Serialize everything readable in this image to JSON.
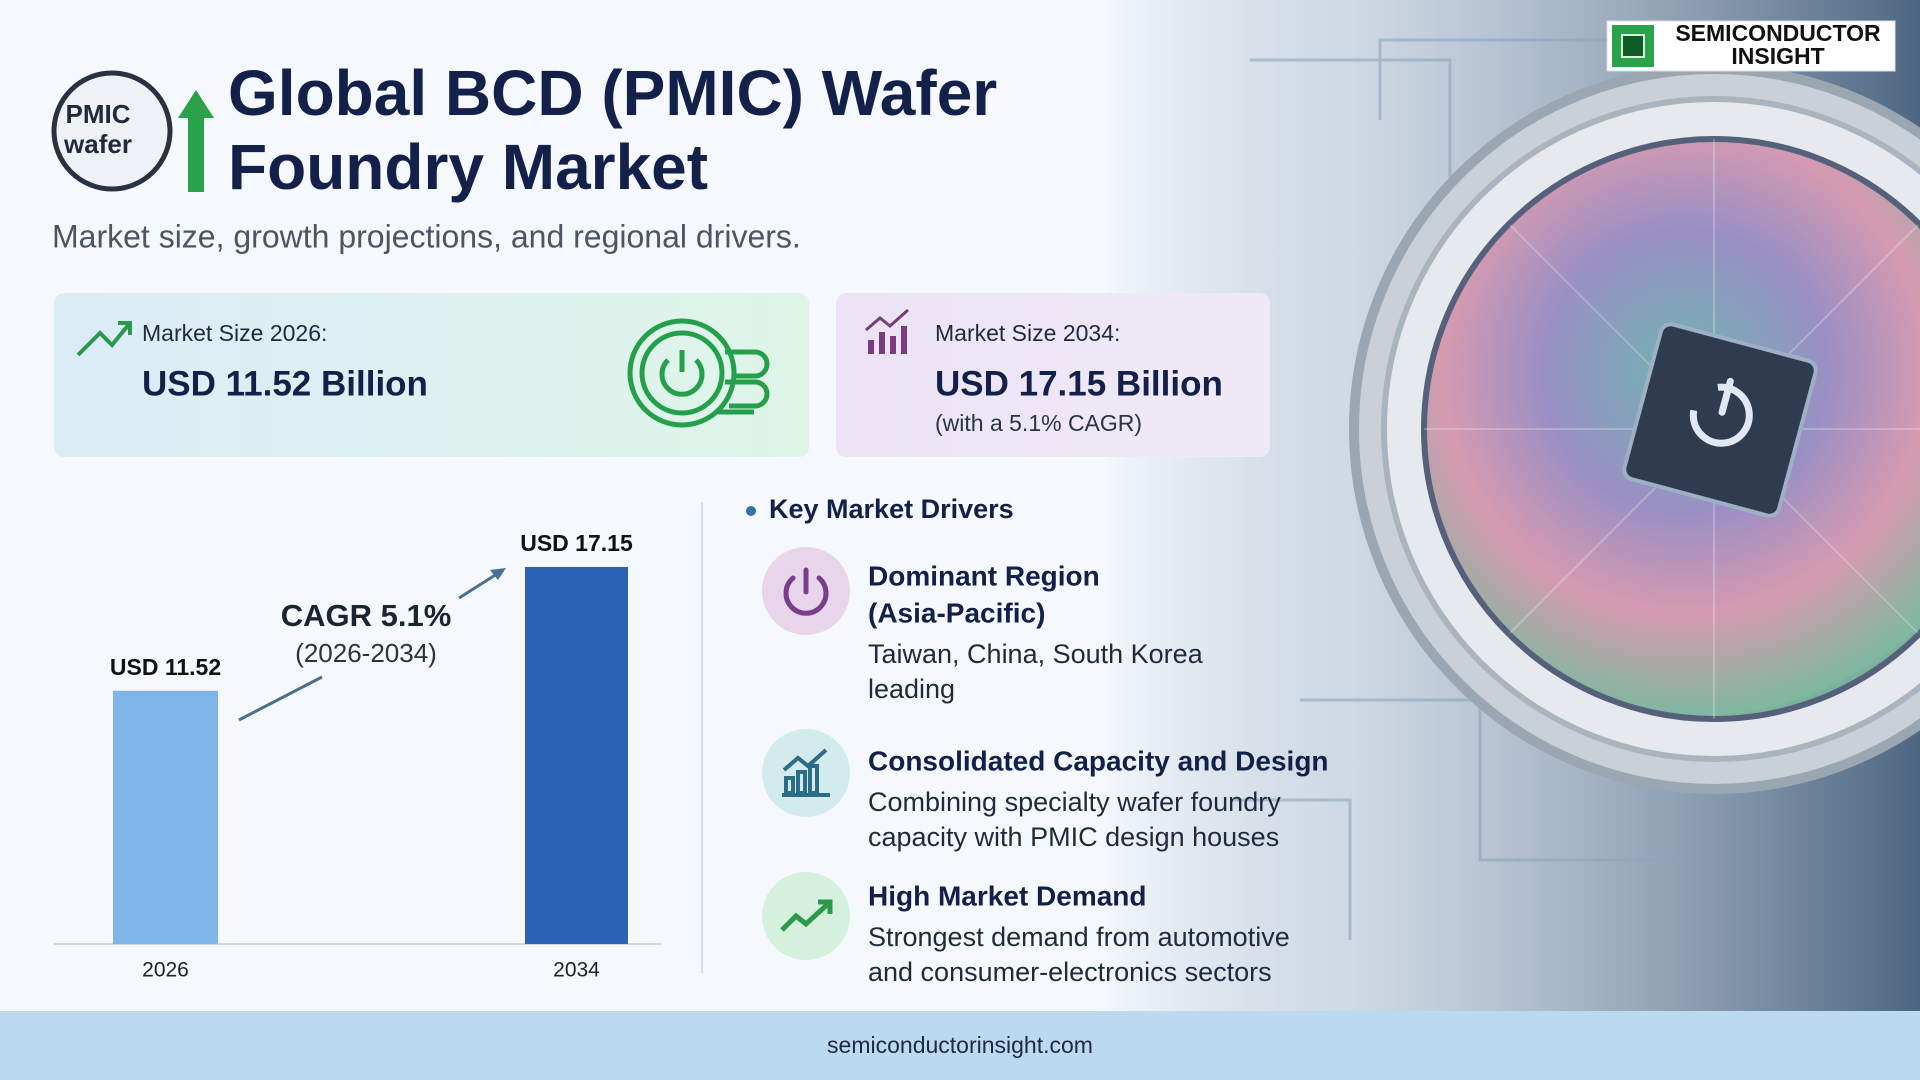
{
  "header": {
    "logo_lines": [
      "PMIC",
      "wafer"
    ],
    "title_lines": [
      "Global BCD (PMIC) Wafer",
      "Foundry Market"
    ],
    "subtitle": "Market size, growth projections, and regional drivers.",
    "brand_lines": [
      "SEMICONDUCTOR",
      "INSIGHT"
    ]
  },
  "cards": [
    {
      "label": "Market Size 2026:",
      "value": "USD 11.52 Billion"
    },
    {
      "label": "Market Size 2034:",
      "value": "USD 17.15 Billion",
      "note": "(with a 5.1% CAGR)"
    }
  ],
  "chart_data": {
    "type": "bar",
    "categories": [
      "2026",
      "2034"
    ],
    "values": [
      11.52,
      17.15
    ],
    "value_labels": [
      "USD 11.52",
      "USD 17.15"
    ],
    "colors": [
      "#7eb4e8",
      "#2d62b3"
    ],
    "annotation": "CAGR 5.1%",
    "annotation_sub": "(2026-2034)"
  },
  "drivers": {
    "title": "Key Market Drivers",
    "items": [
      {
        "title_lines": [
          "Dominant Region",
          "(Asia-Pacific)"
        ],
        "desc_lines": [
          "Taiwan, China, South Korea",
          "leading"
        ]
      },
      {
        "title_lines": [
          "Consolidated Capacity and Design"
        ],
        "desc_lines": [
          "Combining specialty wafer foundry",
          "capacity with PMIC design houses"
        ]
      },
      {
        "title_lines": [
          "High Market Demand"
        ],
        "desc_lines": [
          "Strongest demand from automotive",
          "and consumer-electronics sectors"
        ]
      }
    ]
  },
  "footer": "semiconductorinsight.com"
}
